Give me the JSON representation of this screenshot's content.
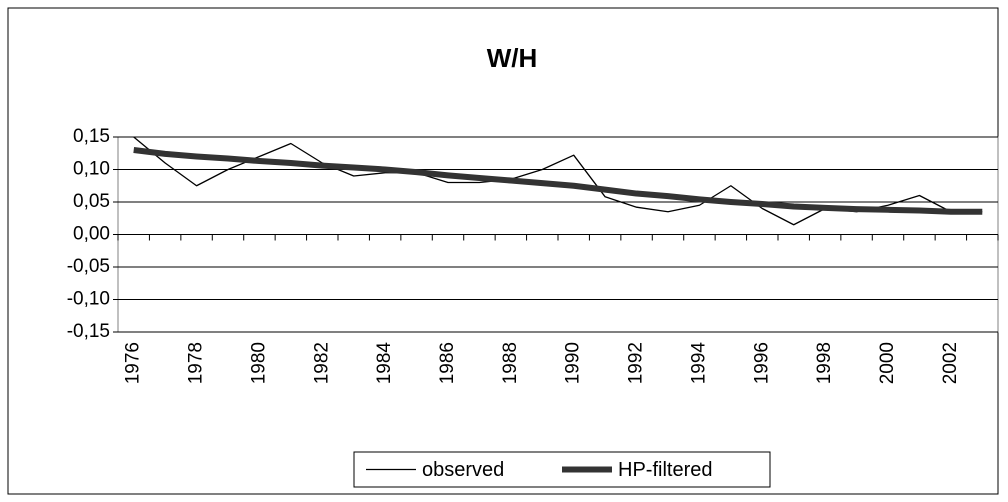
{
  "chart_data": {
    "type": "line",
    "title": "W/H",
    "categories": [
      "1976",
      null,
      "1978",
      null,
      "1980",
      null,
      "1982",
      null,
      "1984",
      null,
      "1986",
      null,
      "1988",
      null,
      "1990",
      null,
      "1992",
      null,
      "1994",
      null,
      "1996",
      null,
      "1998",
      null,
      "2000",
      null,
      "2002",
      null
    ],
    "series": [
      {
        "name": "observed",
        "color": "#000000",
        "values": [
          0.15,
          0.11,
          0.075,
          0.1,
          0.12,
          0.14,
          0.11,
          0.09,
          0.095,
          0.095,
          0.08,
          0.08,
          0.085,
          0.1,
          0.122,
          0.058,
          0.042,
          0.035,
          0.045,
          0.075,
          0.04,
          0.015,
          0.04,
          0.035,
          0.045,
          0.06,
          0.035,
          0.035
        ]
      },
      {
        "name": "HP-filtered",
        "color": "#333333",
        "values": [
          0.13,
          0.124,
          0.12,
          0.117,
          0.113,
          0.11,
          0.106,
          0.103,
          0.1,
          0.096,
          0.091,
          0.087,
          0.083,
          0.079,
          0.075,
          0.069,
          0.063,
          0.059,
          0.054,
          0.05,
          0.047,
          0.043,
          0.041,
          0.039,
          0.038,
          0.037,
          0.035,
          0.035
        ]
      }
    ],
    "ylim": [
      -0.15,
      0.15
    ],
    "yticks": [
      {
        "value": -0.15,
        "label": "-0,15"
      },
      {
        "value": -0.1,
        "label": "-0,10"
      },
      {
        "value": -0.05,
        "label": "-0,05"
      },
      {
        "value": 0,
        "label": "0,00"
      },
      {
        "value": 0.05,
        "label": "0,05"
      },
      {
        "value": 0.1,
        "label": "0,10"
      },
      {
        "value": 0.15,
        "label": "0,15"
      }
    ],
    "grid": true,
    "legend": "bottom"
  }
}
